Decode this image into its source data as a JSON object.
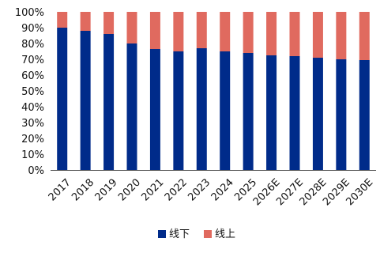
{
  "chart_data": {
    "type": "bar",
    "stacked": true,
    "categories": [
      "2017",
      "2018",
      "2019",
      "2020",
      "2021",
      "2022",
      "2023",
      "2024",
      "2025",
      "2026E",
      "2027E",
      "2028E",
      "2029E",
      "2030E"
    ],
    "series": [
      {
        "name": "线下",
        "color": "#002b8a",
        "values": [
          90,
          88,
          86,
          80,
          76.5,
          75,
          77,
          75,
          74,
          72.5,
          72,
          71,
          70,
          69.5
        ]
      },
      {
        "name": "线上",
        "color": "#e06a5f",
        "values": [
          10,
          12,
          14,
          20,
          23.5,
          25,
          23,
          25,
          26,
          27.5,
          28,
          29,
          30,
          30.5
        ]
      }
    ],
    "ylim": [
      0,
      100
    ],
    "yticks": [
      "0%",
      "10%",
      "20%",
      "30%",
      "40%",
      "50%",
      "60%",
      "70%",
      "80%",
      "90%",
      "100%"
    ],
    "grid": false,
    "legend_position": "bottom"
  }
}
